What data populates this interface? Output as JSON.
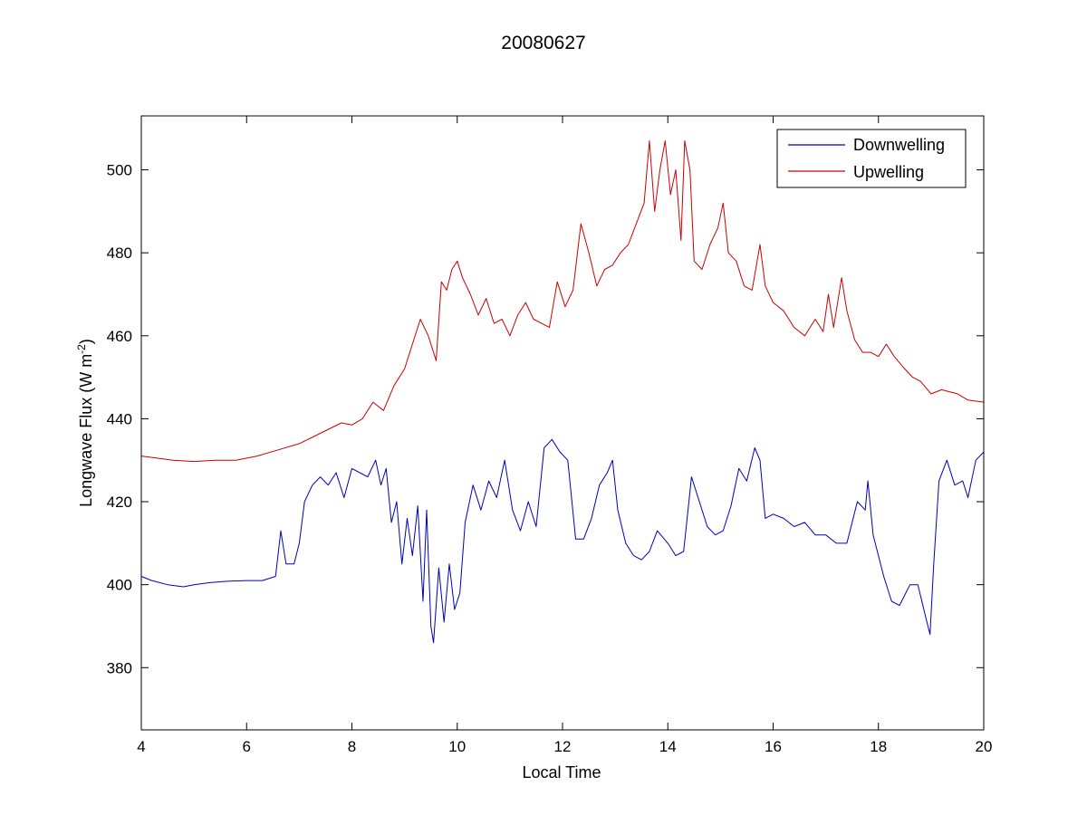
{
  "chart_data": {
    "type": "line",
    "title": "20080627",
    "xlabel": "Local Time",
    "ylabel_main": "Longwave Flux (W m",
    "ylabel_sup": "-2",
    "ylabel_end": ")",
    "xlim": [
      4,
      20
    ],
    "ylim": [
      365,
      513
    ],
    "xticks": [
      4,
      6,
      8,
      10,
      12,
      14,
      16,
      18,
      20
    ],
    "yticks": [
      380,
      400,
      420,
      440,
      460,
      480,
      500
    ],
    "grid": false,
    "legend_position": "top-right",
    "series": [
      {
        "name": "Downwelling",
        "color": "#0000bb",
        "points": [
          [
            4.0,
            402
          ],
          [
            4.2,
            401
          ],
          [
            4.5,
            400
          ],
          [
            4.8,
            399.5
          ],
          [
            5.0,
            400
          ],
          [
            5.3,
            400.5
          ],
          [
            5.6,
            400.8
          ],
          [
            6.0,
            401
          ],
          [
            6.3,
            401
          ],
          [
            6.55,
            402
          ],
          [
            6.65,
            413
          ],
          [
            6.75,
            405
          ],
          [
            6.9,
            405
          ],
          [
            7.0,
            410
          ],
          [
            7.1,
            420
          ],
          [
            7.25,
            424
          ],
          [
            7.4,
            426
          ],
          [
            7.55,
            424
          ],
          [
            7.7,
            427
          ],
          [
            7.85,
            421
          ],
          [
            8.0,
            428
          ],
          [
            8.15,
            427
          ],
          [
            8.3,
            426
          ],
          [
            8.45,
            430
          ],
          [
            8.55,
            424
          ],
          [
            8.65,
            428
          ],
          [
            8.75,
            415
          ],
          [
            8.85,
            420
          ],
          [
            8.95,
            405
          ],
          [
            9.05,
            416
          ],
          [
            9.15,
            407
          ],
          [
            9.25,
            419
          ],
          [
            9.35,
            396
          ],
          [
            9.42,
            418
          ],
          [
            9.5,
            390
          ],
          [
            9.55,
            386
          ],
          [
            9.65,
            404
          ],
          [
            9.75,
            391
          ],
          [
            9.85,
            405
          ],
          [
            9.95,
            394
          ],
          [
            10.05,
            398
          ],
          [
            10.15,
            415
          ],
          [
            10.3,
            424
          ],
          [
            10.45,
            418
          ],
          [
            10.6,
            425
          ],
          [
            10.75,
            421
          ],
          [
            10.9,
            430
          ],
          [
            11.05,
            418
          ],
          [
            11.2,
            413
          ],
          [
            11.35,
            420
          ],
          [
            11.5,
            414
          ],
          [
            11.65,
            433
          ],
          [
            11.8,
            435
          ],
          [
            11.95,
            432
          ],
          [
            12.1,
            430
          ],
          [
            12.25,
            411
          ],
          [
            12.4,
            411
          ],
          [
            12.55,
            416
          ],
          [
            12.7,
            424
          ],
          [
            12.85,
            427
          ],
          [
            12.95,
            430
          ],
          [
            13.05,
            418
          ],
          [
            13.2,
            410
          ],
          [
            13.35,
            407
          ],
          [
            13.5,
            406
          ],
          [
            13.65,
            408
          ],
          [
            13.8,
            413
          ],
          [
            14.0,
            410
          ],
          [
            14.15,
            407
          ],
          [
            14.3,
            408
          ],
          [
            14.45,
            426
          ],
          [
            14.6,
            420
          ],
          [
            14.75,
            414
          ],
          [
            14.9,
            412
          ],
          [
            15.05,
            413
          ],
          [
            15.2,
            419
          ],
          [
            15.35,
            428
          ],
          [
            15.5,
            425
          ],
          [
            15.65,
            433
          ],
          [
            15.75,
            430
          ],
          [
            15.85,
            416
          ],
          [
            16.0,
            417
          ],
          [
            16.2,
            416
          ],
          [
            16.4,
            414
          ],
          [
            16.6,
            415
          ],
          [
            16.8,
            412
          ],
          [
            17.0,
            412
          ],
          [
            17.2,
            410
          ],
          [
            17.4,
            410
          ],
          [
            17.6,
            420
          ],
          [
            17.75,
            418
          ],
          [
            17.8,
            425
          ],
          [
            17.9,
            412
          ],
          [
            18.1,
            402
          ],
          [
            18.25,
            396
          ],
          [
            18.4,
            395
          ],
          [
            18.6,
            400
          ],
          [
            18.75,
            400
          ],
          [
            18.9,
            392
          ],
          [
            18.98,
            388
          ],
          [
            19.05,
            405
          ],
          [
            19.15,
            425
          ],
          [
            19.3,
            430
          ],
          [
            19.45,
            424
          ],
          [
            19.6,
            425
          ],
          [
            19.7,
            421
          ],
          [
            19.85,
            430
          ],
          [
            20.0,
            432
          ]
        ]
      },
      {
        "name": "Upwelling",
        "color": "#cc0000",
        "points": [
          [
            4.0,
            431
          ],
          [
            4.3,
            430.5
          ],
          [
            4.6,
            430
          ],
          [
            5.0,
            429.7
          ],
          [
            5.4,
            430
          ],
          [
            5.8,
            430
          ],
          [
            6.2,
            431
          ],
          [
            6.6,
            432.5
          ],
          [
            7.0,
            434
          ],
          [
            7.4,
            436.5
          ],
          [
            7.8,
            439
          ],
          [
            8.0,
            438.5
          ],
          [
            8.2,
            440
          ],
          [
            8.4,
            444
          ],
          [
            8.6,
            442
          ],
          [
            8.8,
            448
          ],
          [
            9.0,
            452
          ],
          [
            9.15,
            458
          ],
          [
            9.3,
            464
          ],
          [
            9.45,
            460
          ],
          [
            9.6,
            454
          ],
          [
            9.7,
            473
          ],
          [
            9.8,
            471
          ],
          [
            9.9,
            476
          ],
          [
            10.0,
            478
          ],
          [
            10.1,
            474
          ],
          [
            10.25,
            470
          ],
          [
            10.4,
            465
          ],
          [
            10.55,
            469
          ],
          [
            10.7,
            463
          ],
          [
            10.85,
            464
          ],
          [
            11.0,
            460
          ],
          [
            11.15,
            465
          ],
          [
            11.3,
            468
          ],
          [
            11.45,
            464
          ],
          [
            11.6,
            463
          ],
          [
            11.75,
            462
          ],
          [
            11.9,
            473
          ],
          [
            12.05,
            467
          ],
          [
            12.2,
            471
          ],
          [
            12.35,
            487
          ],
          [
            12.5,
            480
          ],
          [
            12.65,
            472
          ],
          [
            12.8,
            476
          ],
          [
            12.95,
            477
          ],
          [
            13.1,
            480
          ],
          [
            13.25,
            482
          ],
          [
            13.4,
            487
          ],
          [
            13.55,
            492
          ],
          [
            13.65,
            507
          ],
          [
            13.75,
            490
          ],
          [
            13.85,
            500
          ],
          [
            13.95,
            507
          ],
          [
            14.05,
            494
          ],
          [
            14.15,
            500
          ],
          [
            14.25,
            483
          ],
          [
            14.32,
            507
          ],
          [
            14.42,
            500
          ],
          [
            14.5,
            478
          ],
          [
            14.65,
            476
          ],
          [
            14.8,
            482
          ],
          [
            14.95,
            486
          ],
          [
            15.05,
            492
          ],
          [
            15.15,
            480
          ],
          [
            15.3,
            478
          ],
          [
            15.45,
            472
          ],
          [
            15.6,
            471
          ],
          [
            15.75,
            482
          ],
          [
            15.85,
            472
          ],
          [
            16.0,
            468
          ],
          [
            16.2,
            466
          ],
          [
            16.4,
            462
          ],
          [
            16.6,
            460
          ],
          [
            16.8,
            464
          ],
          [
            16.95,
            461
          ],
          [
            17.05,
            470
          ],
          [
            17.15,
            462
          ],
          [
            17.3,
            474
          ],
          [
            17.4,
            466
          ],
          [
            17.55,
            459
          ],
          [
            17.7,
            456
          ],
          [
            17.85,
            456
          ],
          [
            18.0,
            455
          ],
          [
            18.15,
            458
          ],
          [
            18.3,
            455
          ],
          [
            18.5,
            452
          ],
          [
            18.65,
            450
          ],
          [
            18.8,
            449
          ],
          [
            19.0,
            446
          ],
          [
            19.2,
            447
          ],
          [
            19.5,
            446
          ],
          [
            19.7,
            444.5
          ],
          [
            20.0,
            444
          ]
        ]
      }
    ]
  }
}
